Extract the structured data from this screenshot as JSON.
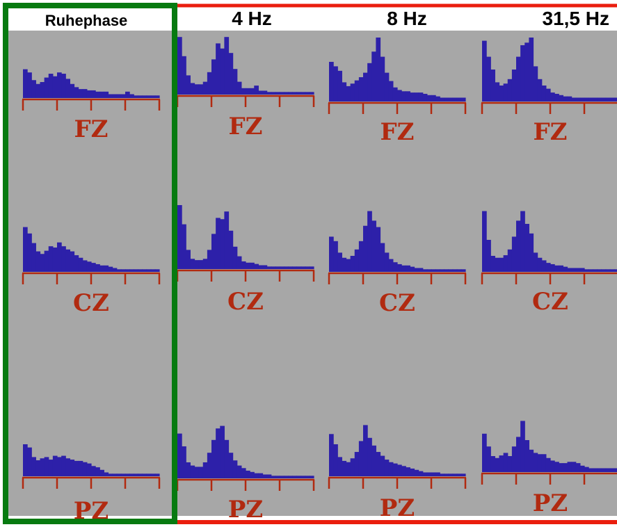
{
  "colors": {
    "panel_background": "#a7a7a7",
    "histogram": "#2d20a9",
    "axis": "#b12a10",
    "electrode_label": "#b12a10",
    "rest_frame": "#077a10",
    "stim_frame": "#ea1e0e",
    "header_text": "#000000"
  },
  "headers": {
    "rest": "Ruhephase",
    "hz4": "4 Hz",
    "hz8": "8 Hz",
    "hz31": "31,5 Hz"
  },
  "electrodes": [
    "FZ",
    "CZ",
    "PZ"
  ],
  "chart_data": {
    "type": "bar",
    "columns": [
      "Ruhephase",
      "4 Hz",
      "8 Hz",
      "31,5 Hz"
    ],
    "rows": [
      "FZ",
      "CZ",
      "PZ"
    ],
    "ylim": [
      0,
      1
    ],
    "axis_ticks": 4,
    "panels": [
      {
        "column": "Ruhephase",
        "electrode": "FZ",
        "values": [
          0.45,
          0.4,
          0.28,
          0.22,
          0.25,
          0.32,
          0.38,
          0.34,
          0.4,
          0.38,
          0.3,
          0.22,
          0.17,
          0.14,
          0.14,
          0.12,
          0.12,
          0.1,
          0.1,
          0.1,
          0.06,
          0.06,
          0.06,
          0.06,
          0.1,
          0.06,
          0.04,
          0.04,
          0.04,
          0.04,
          0.04,
          0.04
        ]
      },
      {
        "column": "4 Hz",
        "electrode": "FZ",
        "values": [
          0.9,
          0.6,
          0.3,
          0.18,
          0.16,
          0.16,
          0.2,
          0.35,
          0.55,
          0.8,
          0.72,
          0.9,
          0.65,
          0.4,
          0.2,
          0.1,
          0.1,
          0.1,
          0.14,
          0.06,
          0.06,
          0.04,
          0.04,
          0.04,
          0.04,
          0.04,
          0.04,
          0.04,
          0.04,
          0.04,
          0.04,
          0.04
        ]
      },
      {
        "column": "8 Hz",
        "electrode": "FZ",
        "values": [
          0.62,
          0.55,
          0.48,
          0.3,
          0.24,
          0.28,
          0.33,
          0.38,
          0.45,
          0.6,
          0.78,
          1.0,
          0.7,
          0.45,
          0.32,
          0.22,
          0.18,
          0.16,
          0.16,
          0.14,
          0.14,
          0.14,
          0.12,
          0.1,
          0.1,
          0.08,
          0.06,
          0.06,
          0.06,
          0.06,
          0.06,
          0.06
        ]
      },
      {
        "column": "31,5 Hz",
        "electrode": "FZ",
        "values": [
          0.95,
          0.7,
          0.5,
          0.3,
          0.25,
          0.28,
          0.35,
          0.5,
          0.7,
          0.88,
          0.92,
          1.0,
          0.55,
          0.35,
          0.25,
          0.2,
          0.14,
          0.12,
          0.1,
          0.08,
          0.08,
          0.06,
          0.06,
          0.06,
          0.06,
          0.06,
          0.06,
          0.06,
          0.06,
          0.06,
          0.06,
          0.06
        ]
      },
      {
        "column": "Ruhephase",
        "electrode": "CZ",
        "values": [
          0.7,
          0.6,
          0.45,
          0.32,
          0.28,
          0.33,
          0.4,
          0.38,
          0.46,
          0.4,
          0.35,
          0.32,
          0.26,
          0.22,
          0.18,
          0.16,
          0.14,
          0.12,
          0.1,
          0.1,
          0.08,
          0.06,
          0.04,
          0.04,
          0.04,
          0.04,
          0.04,
          0.04,
          0.04,
          0.04,
          0.04,
          0.04
        ]
      },
      {
        "column": "4 Hz",
        "electrode": "CZ",
        "values": [
          1.0,
          0.7,
          0.3,
          0.16,
          0.14,
          0.14,
          0.16,
          0.3,
          0.55,
          0.8,
          0.78,
          0.9,
          0.6,
          0.35,
          0.2,
          0.12,
          0.1,
          0.1,
          0.08,
          0.06,
          0.06,
          0.04,
          0.04,
          0.04,
          0.04,
          0.04,
          0.04,
          0.04,
          0.04,
          0.04,
          0.04,
          0.04
        ]
      },
      {
        "column": "8 Hz",
        "electrode": "CZ",
        "values": [
          0.55,
          0.48,
          0.3,
          0.22,
          0.2,
          0.25,
          0.35,
          0.48,
          0.72,
          0.95,
          0.8,
          0.7,
          0.45,
          0.3,
          0.2,
          0.15,
          0.12,
          0.1,
          0.1,
          0.08,
          0.06,
          0.06,
          0.04,
          0.04,
          0.04,
          0.04,
          0.04,
          0.04,
          0.04,
          0.04,
          0.04,
          0.04
        ]
      },
      {
        "column": "31,5 Hz",
        "electrode": "CZ",
        "values": [
          0.95,
          0.5,
          0.25,
          0.22,
          0.22,
          0.26,
          0.35,
          0.55,
          0.8,
          0.95,
          0.75,
          0.6,
          0.3,
          0.22,
          0.18,
          0.14,
          0.12,
          0.1,
          0.1,
          0.08,
          0.06,
          0.06,
          0.06,
          0.06,
          0.04,
          0.04,
          0.04,
          0.04,
          0.04,
          0.04,
          0.04,
          0.04
        ]
      },
      {
        "column": "Ruhephase",
        "electrode": "PZ",
        "values": [
          0.5,
          0.45,
          0.3,
          0.25,
          0.28,
          0.3,
          0.26,
          0.32,
          0.3,
          0.32,
          0.28,
          0.26,
          0.24,
          0.24,
          0.22,
          0.2,
          0.16,
          0.14,
          0.1,
          0.06,
          0.04,
          0.04,
          0.04,
          0.04,
          0.04,
          0.04,
          0.04,
          0.04,
          0.04,
          0.04,
          0.04,
          0.04
        ]
      },
      {
        "column": "4 Hz",
        "electrode": "PZ",
        "values": [
          0.7,
          0.5,
          0.25,
          0.2,
          0.18,
          0.18,
          0.25,
          0.4,
          0.6,
          0.78,
          0.82,
          0.6,
          0.4,
          0.28,
          0.2,
          0.16,
          0.12,
          0.1,
          0.08,
          0.08,
          0.06,
          0.06,
          0.04,
          0.04,
          0.04,
          0.04,
          0.04,
          0.04,
          0.04,
          0.04,
          0.04,
          0.04
        ]
      },
      {
        "column": "8 Hz",
        "electrode": "PZ",
        "values": [
          0.66,
          0.5,
          0.3,
          0.24,
          0.22,
          0.28,
          0.38,
          0.55,
          0.8,
          0.6,
          0.48,
          0.38,
          0.32,
          0.26,
          0.22,
          0.2,
          0.18,
          0.16,
          0.14,
          0.12,
          0.1,
          0.08,
          0.06,
          0.06,
          0.06,
          0.06,
          0.04,
          0.04,
          0.04,
          0.04,
          0.04,
          0.04
        ]
      },
      {
        "column": "31,5 Hz",
        "electrode": "PZ",
        "values": [
          0.6,
          0.4,
          0.25,
          0.22,
          0.26,
          0.3,
          0.25,
          0.4,
          0.55,
          0.8,
          0.5,
          0.35,
          0.3,
          0.28,
          0.28,
          0.22,
          0.18,
          0.16,
          0.14,
          0.14,
          0.16,
          0.16,
          0.14,
          0.1,
          0.08,
          0.06,
          0.06,
          0.06,
          0.06,
          0.06,
          0.06,
          0.06
        ]
      }
    ]
  }
}
